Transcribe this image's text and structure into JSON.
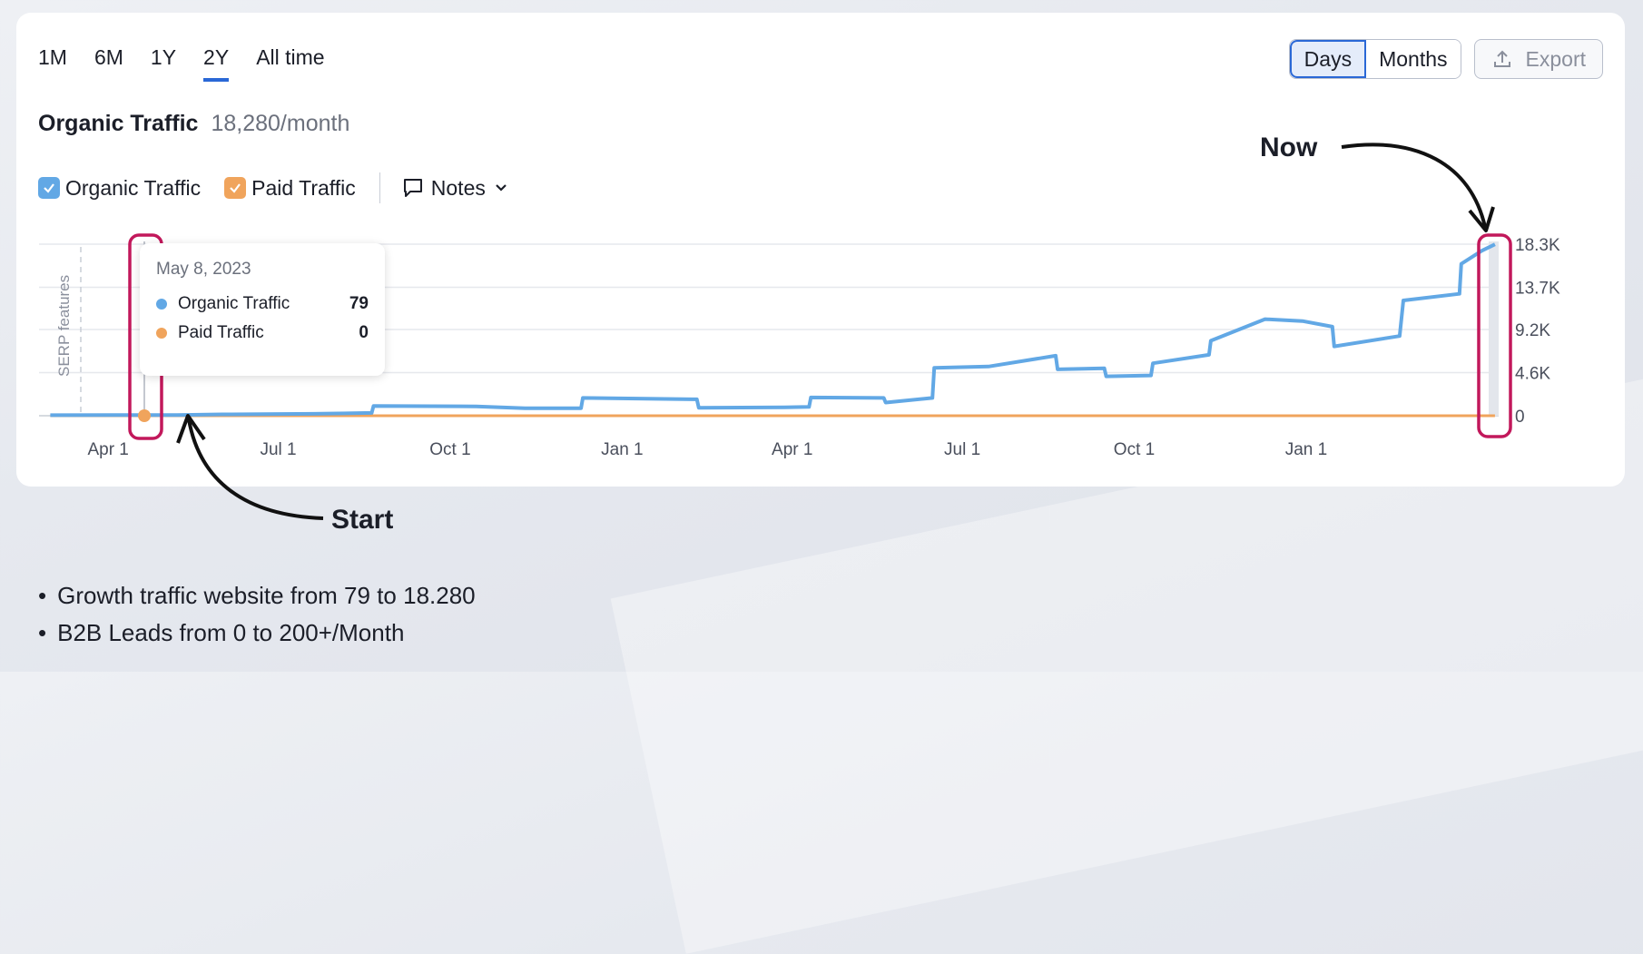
{
  "periods": [
    {
      "label": "1M",
      "active": false
    },
    {
      "label": "6M",
      "active": false
    },
    {
      "label": "1Y",
      "active": false
    },
    {
      "label": "2Y",
      "active": true
    },
    {
      "label": "All time",
      "active": false
    }
  ],
  "granularity": {
    "days_label": "Days",
    "months_label": "Months",
    "selected": "Days"
  },
  "export_label": "Export",
  "header": {
    "title": "Organic Traffic",
    "value": "18,280/month"
  },
  "legend": {
    "organic_label": "Organic Traffic",
    "paid_label": "Paid Traffic",
    "notes_label": "Notes"
  },
  "colors": {
    "organic": "#62a8e5",
    "paid": "#f0a45c",
    "highlight": "#c2185b",
    "accent": "#2a68d6"
  },
  "tooltip": {
    "date": "May 8, 2023",
    "rows": [
      {
        "label": "Organic Traffic",
        "value": "79"
      },
      {
        "label": "Paid Traffic",
        "value": "0"
      }
    ]
  },
  "serp_label": "SERP features",
  "annotations": {
    "now": "Now",
    "start": "Start"
  },
  "bullets": [
    "Growth traffic website from 79 to 18.280",
    "B2B Leads from 0 to 200+/Month"
  ],
  "chart_data": {
    "type": "line",
    "x_tick_labels": [
      "Apr 1",
      "Jul 1",
      "Oct 1",
      "Jan 1",
      "Apr 1",
      "Jul 1",
      "Oct 1",
      "Jan 1"
    ],
    "y_tick_labels": [
      "0",
      "4.6K",
      "9.2K",
      "13.7K",
      "18.3K"
    ],
    "ylim": [
      0,
      18300
    ],
    "grid": true,
    "legend_position": "top-left",
    "series": [
      {
        "name": "Organic Traffic",
        "points": [
          {
            "x": "2023-03-01",
            "y": 60
          },
          {
            "x": "2023-05-08",
            "y": 79
          },
          {
            "x": "2023-06-01",
            "y": 150
          },
          {
            "x": "2023-07-20",
            "y": 200
          },
          {
            "x": "2023-08-20",
            "y": 300
          },
          {
            "x": "2023-08-21",
            "y": 1050
          },
          {
            "x": "2023-10-15",
            "y": 1000
          },
          {
            "x": "2023-11-10",
            "y": 800
          },
          {
            "x": "2023-12-10",
            "y": 800
          },
          {
            "x": "2023-12-11",
            "y": 1900
          },
          {
            "x": "2024-02-10",
            "y": 1750
          },
          {
            "x": "2024-02-11",
            "y": 850
          },
          {
            "x": "2024-03-28",
            "y": 900
          },
          {
            "x": "2024-04-10",
            "y": 950
          },
          {
            "x": "2024-04-11",
            "y": 1950
          },
          {
            "x": "2024-05-20",
            "y": 1900
          },
          {
            "x": "2024-05-21",
            "y": 1400
          },
          {
            "x": "2024-06-15",
            "y": 1900
          },
          {
            "x": "2024-06-16",
            "y": 5100
          },
          {
            "x": "2024-07-15",
            "y": 5250
          },
          {
            "x": "2024-08-20",
            "y": 6400
          },
          {
            "x": "2024-08-21",
            "y": 4950
          },
          {
            "x": "2024-09-15",
            "y": 5050
          },
          {
            "x": "2024-09-16",
            "y": 4200
          },
          {
            "x": "2024-10-10",
            "y": 4300
          },
          {
            "x": "2024-10-11",
            "y": 5600
          },
          {
            "x": "2024-11-10",
            "y": 6500
          },
          {
            "x": "2024-11-11",
            "y": 8000
          },
          {
            "x": "2024-12-10",
            "y": 10300
          },
          {
            "x": "2024-12-30",
            "y": 10100
          },
          {
            "x": "2025-01-15",
            "y": 9500
          },
          {
            "x": "2025-01-16",
            "y": 7400
          },
          {
            "x": "2025-02-20",
            "y": 8500
          },
          {
            "x": "2025-02-22",
            "y": 12300
          },
          {
            "x": "2025-03-24",
            "y": 13000
          },
          {
            "x": "2025-03-25",
            "y": 16200
          },
          {
            "x": "2025-04-05",
            "y": 17600
          },
          {
            "x": "2025-04-12",
            "y": 18280
          }
        ]
      },
      {
        "name": "Paid Traffic",
        "points": [
          {
            "x": "2023-03-01",
            "y": 0
          },
          {
            "x": "2025-04-12",
            "y": 0
          }
        ]
      }
    ]
  }
}
